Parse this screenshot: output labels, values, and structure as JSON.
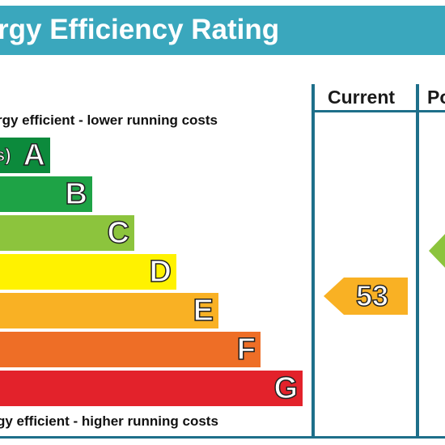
{
  "header": {
    "title": "rgy Efficiency Rating"
  },
  "columns": {
    "current": "Current",
    "potential": "Po"
  },
  "captions": {
    "top": "rgy efficient - lower running costs",
    "bottom": "gy efficient - higher running costs"
  },
  "chart_data": {
    "type": "bar",
    "title": "rgy Efficiency Rating",
    "categories": [
      "A",
      "B",
      "C",
      "D",
      "E",
      "F",
      "G"
    ],
    "band_extra_text": [
      "s)",
      "",
      "",
      "",
      "",
      "",
      ""
    ],
    "colors": [
      "#0c8a3c",
      "#1ea346",
      "#8cc43d",
      "#fff200",
      "#f9b124",
      "#ee6e26",
      "#e3222b"
    ],
    "current_rating": {
      "value": 53,
      "band": "E",
      "color": "#f9b124"
    },
    "potential_rating": {
      "band": "C",
      "color": "#8cc43d"
    }
  }
}
